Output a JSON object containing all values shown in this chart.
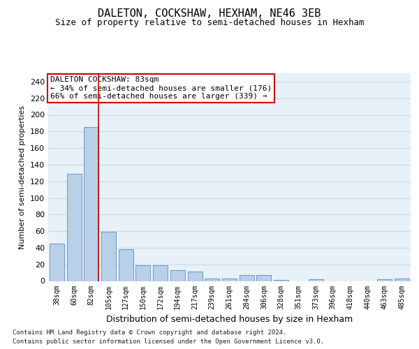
{
  "title": "DALETON, COCKSHAW, HEXHAM, NE46 3EB",
  "subtitle": "Size of property relative to semi-detached houses in Hexham",
  "xlabel": "Distribution of semi-detached houses by size in Hexham",
  "ylabel": "Number of semi-detached properties",
  "categories": [
    "38sqm",
    "60sqm",
    "82sqm",
    "105sqm",
    "127sqm",
    "150sqm",
    "172sqm",
    "194sqm",
    "217sqm",
    "239sqm",
    "261sqm",
    "284sqm",
    "306sqm",
    "328sqm",
    "351sqm",
    "373sqm",
    "396sqm",
    "418sqm",
    "440sqm",
    "463sqm",
    "485sqm"
  ],
  "values": [
    45,
    129,
    185,
    59,
    38,
    19,
    19,
    13,
    11,
    3,
    3,
    7,
    7,
    1,
    0,
    2,
    0,
    0,
    0,
    2,
    3
  ],
  "bar_color": "#b8d0e8",
  "bar_edge_color": "#5a8fc0",
  "property_bin_index": 2,
  "vline_color": "#cc0000",
  "annotation_text": "DALETON COCKSHAW: 83sqm\n← 34% of semi-detached houses are smaller (176)\n66% of semi-detached houses are larger (339) →",
  "annotation_box_color": "#ffffff",
  "annotation_box_edge_color": "#cc0000",
  "ylim": [
    0,
    250
  ],
  "yticks": [
    0,
    20,
    40,
    60,
    80,
    100,
    120,
    140,
    160,
    180,
    200,
    220,
    240
  ],
  "grid_color": "#c8d8e8",
  "bg_color": "#e8f0f8",
  "footer_line1": "Contains HM Land Registry data © Crown copyright and database right 2024.",
  "footer_line2": "Contains public sector information licensed under the Open Government Licence v3.0.",
  "title_fontsize": 11,
  "subtitle_fontsize": 9,
  "xlabel_fontsize": 9,
  "ylabel_fontsize": 8,
  "annotation_fontsize": 8,
  "tick_fontsize": 7
}
